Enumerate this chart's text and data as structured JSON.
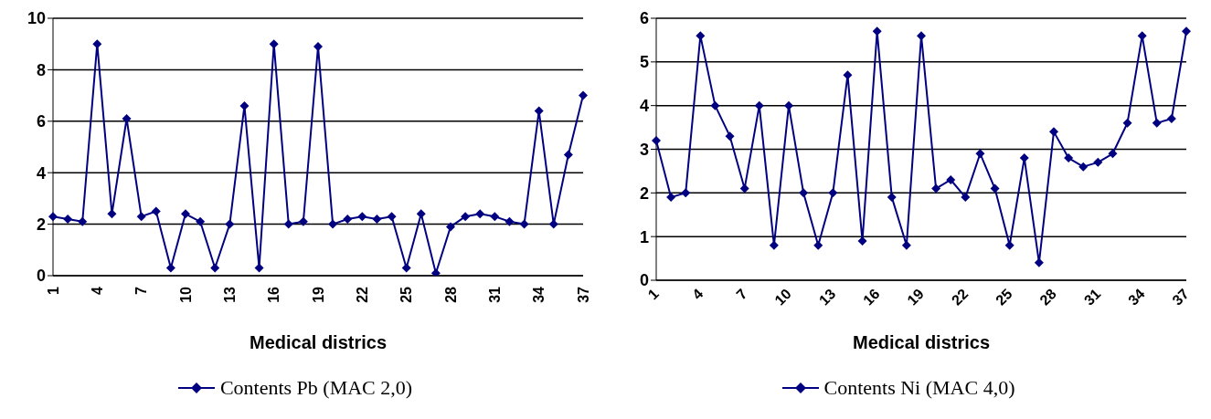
{
  "chart_data": [
    {
      "type": "line",
      "xlabel": "Medical districs",
      "categories": [
        "1",
        null,
        null,
        "4",
        null,
        null,
        "7",
        null,
        null,
        "10",
        null,
        null,
        "13",
        null,
        null,
        "16",
        null,
        null,
        "19",
        null,
        null,
        "22",
        null,
        null,
        "25",
        null,
        null,
        "28",
        null,
        null,
        "31",
        null,
        null,
        "34",
        null,
        null,
        "37"
      ],
      "series": [
        {
          "name": "Contents Pb (MAC 2,0)",
          "color": "#000080",
          "values": [
            2.3,
            2.2,
            2.1,
            9.0,
            2.4,
            6.1,
            2.3,
            2.5,
            0.3,
            2.4,
            2.1,
            0.3,
            2.0,
            6.6,
            0.3,
            9.0,
            2.0,
            2.1,
            8.9,
            2.0,
            2.2,
            2.3,
            2.2,
            2.3,
            0.3,
            2.4,
            0.1,
            1.9,
            2.3,
            2.4,
            2.3,
            2.1,
            2.0,
            6.4,
            2.0,
            4.7,
            7.0
          ]
        }
      ],
      "ylim": [
        0,
        10
      ],
      "yticks": [
        0,
        2,
        4,
        6,
        8,
        10
      ],
      "grid": "y",
      "legend": "bottom",
      "marker": "diamond",
      "line_style": "solid"
    },
    {
      "type": "line",
      "xlabel": "Medical districs",
      "categories": [
        "1",
        null,
        null,
        "4",
        null,
        null,
        "7",
        null,
        null,
        "10",
        null,
        null,
        "13",
        null,
        null,
        "16",
        null,
        null,
        "19",
        null,
        null,
        "22",
        null,
        null,
        "25",
        null,
        null,
        "28",
        null,
        null,
        "31",
        null,
        null,
        "34",
        null,
        null,
        "37"
      ],
      "series": [
        {
          "name": "Contents Ni (MAC 4,0)",
          "color": "#000080",
          "values": [
            3.2,
            1.9,
            2.0,
            5.6,
            4.0,
            3.3,
            2.1,
            4.0,
            0.8,
            4.0,
            2.0,
            0.8,
            2.0,
            4.7,
            0.9,
            5.7,
            1.9,
            0.8,
            5.6,
            2.1,
            2.3,
            1.9,
            2.9,
            2.1,
            0.8,
            2.8,
            0.4,
            3.4,
            2.8,
            2.6,
            2.7,
            2.9,
            3.6,
            5.6,
            3.6,
            3.7,
            5.7
          ]
        }
      ],
      "ylim": [
        0,
        6
      ],
      "yticks": [
        0,
        1,
        2,
        3,
        4,
        5,
        6
      ],
      "grid": "y",
      "legend": "bottom",
      "marker": "diamond",
      "line_style": "solid"
    }
  ]
}
